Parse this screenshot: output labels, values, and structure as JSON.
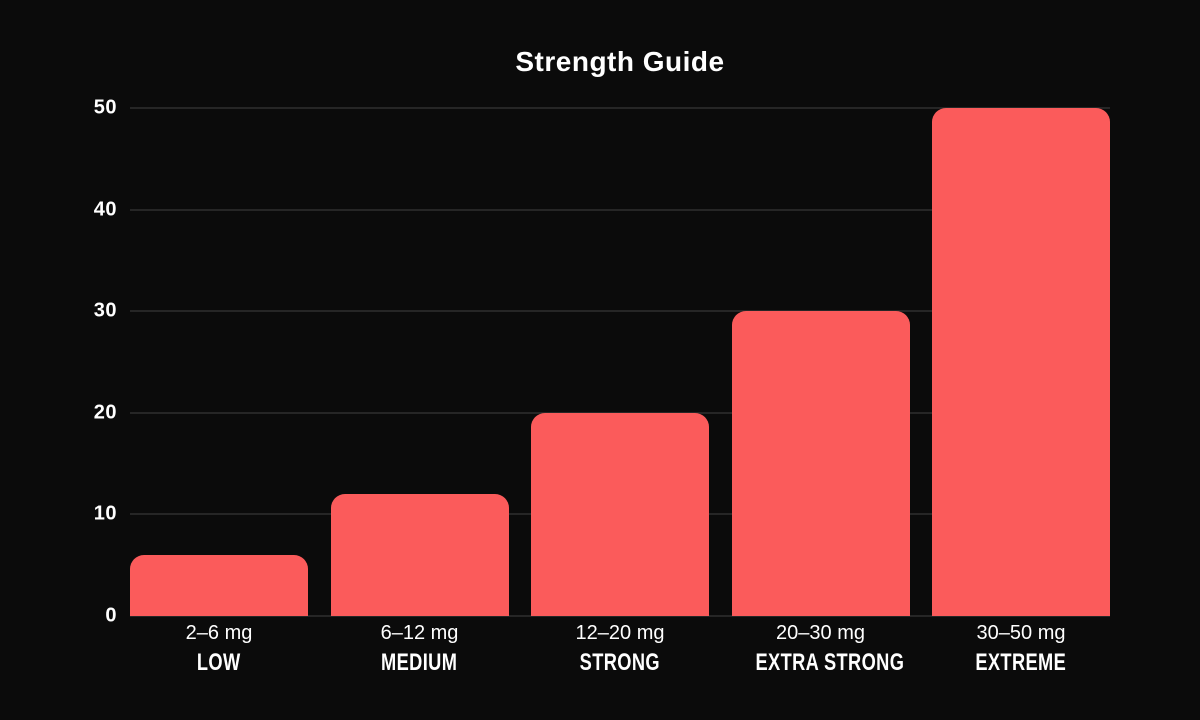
{
  "title": "Strength Guide",
  "colors": {
    "background": "#0B0B0B",
    "bar": "#FB5B5B",
    "gridline": "#262626",
    "text": "#FFFFFF"
  },
  "chart_data": {
    "type": "bar",
    "title": "Strength Guide",
    "categories": [
      "2–6 mg",
      "6–12 mg",
      "12–20 mg",
      "20–30 mg",
      "30–50 mg"
    ],
    "category_sublabels": [
      "LOW",
      "MEDIUM",
      "STRONG",
      "EXTRA STRONG",
      "EXTREME"
    ],
    "values": [
      6,
      12,
      20,
      30,
      50
    ],
    "xlabel": "",
    "ylabel": "",
    "yticks": [
      0,
      10,
      20,
      30,
      40,
      50
    ],
    "ylim": [
      0,
      50
    ],
    "grid": "horizontal-only",
    "gridlines_behind_bars": true,
    "legend": "none",
    "bar_corner_radius_px": 14
  }
}
